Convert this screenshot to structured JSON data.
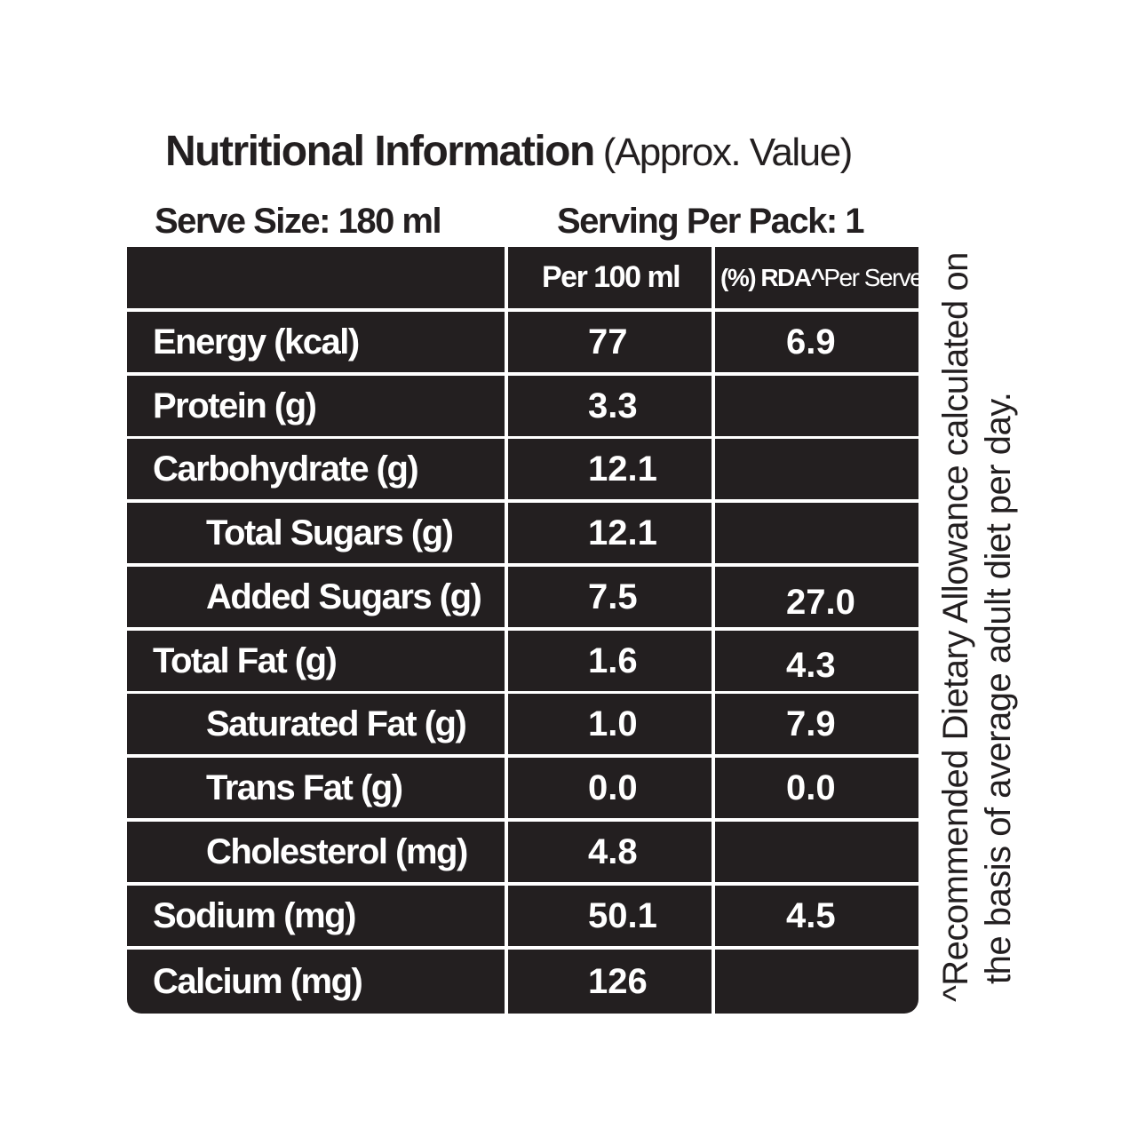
{
  "header": {
    "title": "Nutritional Information",
    "subtitle": "(Approx. Value)",
    "serve_size": "Serve Size: 180 ml",
    "serving_per_pack": "Serving Per Pack: 1"
  },
  "table": {
    "columns": {
      "per_100ml": "Per 100 ml",
      "rda_prefix": "(%) RDA^",
      "rda_suffix": "Per Serve"
    },
    "rows": [
      {
        "label": "Energy (kcal)",
        "per_100ml": "77",
        "rda": "6.9"
      },
      {
        "label": "Protein (g)",
        "per_100ml": "3.3",
        "rda": ""
      },
      {
        "label": "Carbohydrate (g)",
        "per_100ml": "12.1",
        "rda": ""
      },
      {
        "label": "Total Sugars (g)",
        "per_100ml": "12.1",
        "rda": ""
      },
      {
        "label": "Added Sugars (g)",
        "per_100ml": "7.5",
        "rda": "27.0"
      },
      {
        "label": "Total Fat (g)",
        "per_100ml": "1.6",
        "rda": "4.3"
      },
      {
        "label": "Saturated Fat (g)",
        "per_100ml": "1.0",
        "rda": "7.9"
      },
      {
        "label": "Trans Fat (g)",
        "per_100ml": "0.0",
        "rda": "0.0"
      },
      {
        "label": "Cholesterol (mg)",
        "per_100ml": "4.8",
        "rda": ""
      },
      {
        "label": "Sodium (mg)",
        "per_100ml": "50.1",
        "rda": "4.5"
      },
      {
        "label": "Calcium (mg)",
        "per_100ml": "126",
        "rda": ""
      }
    ]
  },
  "footnote": {
    "line1": "^Recommended Dietary Allowance calculated on",
    "line2": "the basis of average adult diet per day."
  },
  "colors": {
    "cell_background": "#231f20",
    "cell_text": "#ffffff",
    "text": "#231f20",
    "background": "#ffffff"
  }
}
